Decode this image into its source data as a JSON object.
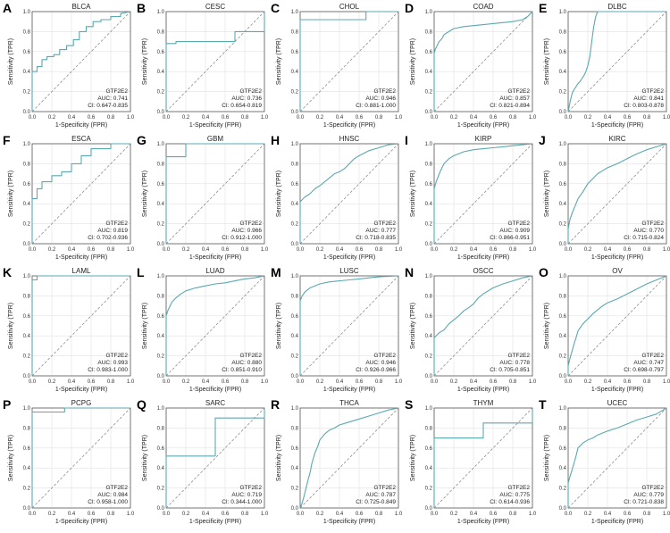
{
  "figure": {
    "xlabel": "1-Specificity (FPR)",
    "ylabel": "Sensitivity (TPR)",
    "ticks": [
      "0.0",
      "0.2",
      "0.4",
      "0.6",
      "0.8",
      "1.0"
    ],
    "curve_color": "#5ba8b0",
    "diagonal_color": "#808080",
    "grid_color": "#e2e2e2"
  },
  "chart_data": [
    {
      "type": "line",
      "panel": "A",
      "title": "BLCA",
      "gene": "GTF2E2",
      "auc": "AUC: 0.741",
      "ci": "CI: 0.647-0.835",
      "xlim": [
        0,
        1
      ],
      "ylim": [
        0,
        1
      ],
      "grid": true,
      "legend": "bottom-right",
      "x": [
        0,
        0,
        0.05,
        0.05,
        0.1,
        0.1,
        0.15,
        0.15,
        0.22,
        0.22,
        0.28,
        0.28,
        0.35,
        0.35,
        0.42,
        0.42,
        0.48,
        0.48,
        0.55,
        0.55,
        0.62,
        0.62,
        0.7,
        0.7,
        0.8,
        0.8,
        0.9,
        0.9,
        1
      ],
      "y": [
        0,
        0.4,
        0.4,
        0.45,
        0.45,
        0.52,
        0.52,
        0.55,
        0.55,
        0.57,
        0.57,
        0.62,
        0.62,
        0.66,
        0.66,
        0.72,
        0.72,
        0.8,
        0.8,
        0.85,
        0.85,
        0.9,
        0.9,
        0.92,
        0.92,
        0.95,
        0.95,
        0.98,
        1
      ]
    },
    {
      "type": "line",
      "panel": "B",
      "title": "CESC",
      "gene": "GTF2E2",
      "auc": "AUC: 0.736",
      "ci": "CI: 0.654-0.819",
      "xlim": [
        0,
        1
      ],
      "ylim": [
        0,
        1
      ],
      "grid": true,
      "legend": "bottom-right",
      "x": [
        0,
        0,
        0.1,
        0.1,
        0.7,
        0.7,
        1,
        1
      ],
      "y": [
        0,
        0.68,
        0.68,
        0.7,
        0.7,
        0.8,
        0.8,
        1
      ]
    },
    {
      "type": "line",
      "panel": "C",
      "title": "CHOL",
      "gene": "GTF2E2",
      "auc": "AUC: 0.946",
      "ci": "CI: 0.881-1.000",
      "xlim": [
        0,
        1
      ],
      "ylim": [
        0,
        1
      ],
      "grid": true,
      "legend": "bottom-right",
      "x": [
        0,
        0,
        0.67,
        0.67,
        1
      ],
      "y": [
        0,
        0.92,
        0.92,
        1,
        1
      ]
    },
    {
      "type": "line",
      "panel": "D",
      "title": "COAD",
      "gene": "GTF2E2",
      "auc": "AUC: 0.857",
      "ci": "CI: 0.821-0.894",
      "xlim": [
        0,
        1
      ],
      "ylim": [
        0,
        1
      ],
      "grid": true,
      "legend": "bottom-right",
      "x": [
        0,
        0,
        0.01,
        0.03,
        0.05,
        0.08,
        0.1,
        0.15,
        0.2,
        0.3,
        0.4,
        0.5,
        0.6,
        0.7,
        0.8,
        0.9,
        0.95,
        1
      ],
      "y": [
        0,
        0.58,
        0.62,
        0.66,
        0.7,
        0.73,
        0.77,
        0.8,
        0.83,
        0.85,
        0.86,
        0.87,
        0.88,
        0.89,
        0.9,
        0.92,
        0.95,
        1
      ]
    },
    {
      "type": "line",
      "panel": "E",
      "title": "DLBC",
      "gene": "GTF2E2",
      "auc": "AUC: 0.841",
      "ci": "CI: 0.803-0.878",
      "xlim": [
        0,
        1
      ],
      "ylim": [
        0,
        1
      ],
      "grid": true,
      "legend": "bottom-right",
      "x": [
        0,
        0.02,
        0.04,
        0.06,
        0.08,
        0.1,
        0.12,
        0.14,
        0.16,
        0.18,
        0.2,
        0.22,
        0.24,
        0.26,
        0.28,
        0.3,
        1
      ],
      "y": [
        0,
        0.1,
        0.18,
        0.22,
        0.25,
        0.28,
        0.3,
        0.33,
        0.36,
        0.4,
        0.46,
        0.55,
        0.7,
        0.85,
        0.95,
        1,
        1
      ]
    },
    {
      "type": "line",
      "panel": "F",
      "title": "ESCA",
      "gene": "GTF2E2",
      "auc": "AUC: 0.819",
      "ci": "CI: 0.702-0.936",
      "xlim": [
        0,
        1
      ],
      "ylim": [
        0,
        1
      ],
      "grid": true,
      "legend": "bottom-right",
      "x": [
        0,
        0,
        0.05,
        0.05,
        0.1,
        0.1,
        0.2,
        0.2,
        0.3,
        0.3,
        0.4,
        0.4,
        0.5,
        0.5,
        0.6,
        0.6,
        0.8,
        0.8,
        1
      ],
      "y": [
        0,
        0.45,
        0.45,
        0.55,
        0.55,
        0.62,
        0.62,
        0.68,
        0.68,
        0.72,
        0.72,
        0.8,
        0.8,
        0.88,
        0.88,
        0.95,
        0.95,
        1,
        1
      ]
    },
    {
      "type": "line",
      "panel": "G",
      "title": "GBM",
      "gene": "GTF2E2",
      "auc": "AUC: 0.966",
      "ci": "CI: 0.912-1.000",
      "xlim": [
        0,
        1
      ],
      "ylim": [
        0,
        1
      ],
      "grid": true,
      "legend": "bottom-right",
      "x": [
        0,
        0,
        0.2,
        0.2,
        1
      ],
      "y": [
        0,
        0.87,
        0.87,
        1,
        1
      ]
    },
    {
      "type": "line",
      "panel": "H",
      "title": "HNSC",
      "gene": "GTF2E2",
      "auc": "AUC: 0.777",
      "ci": "CI: 0.718-0.835",
      "xlim": [
        0,
        1
      ],
      "ylim": [
        0,
        1
      ],
      "grid": true,
      "legend": "bottom-right",
      "x": [
        0,
        0,
        0.05,
        0.1,
        0.15,
        0.2,
        0.25,
        0.3,
        0.35,
        0.4,
        0.45,
        0.5,
        0.55,
        0.6,
        0.7,
        0.8,
        0.9,
        1
      ],
      "y": [
        0,
        0.42,
        0.47,
        0.5,
        0.55,
        0.58,
        0.62,
        0.66,
        0.7,
        0.72,
        0.75,
        0.8,
        0.85,
        0.88,
        0.93,
        0.96,
        0.99,
        1
      ]
    },
    {
      "type": "line",
      "panel": "I",
      "title": "KIRP",
      "gene": "GTF2E2",
      "auc": "AUC: 0.909",
      "ci": "CI: 0.866-0.951",
      "xlim": [
        0,
        1
      ],
      "ylim": [
        0,
        1
      ],
      "grid": true,
      "legend": "bottom-right",
      "x": [
        0,
        0,
        0.02,
        0.04,
        0.06,
        0.1,
        0.15,
        0.2,
        0.25,
        0.3,
        0.4,
        0.5,
        0.6,
        0.7,
        0.8,
        1
      ],
      "y": [
        0,
        0.55,
        0.62,
        0.67,
        0.72,
        0.8,
        0.85,
        0.88,
        0.9,
        0.92,
        0.94,
        0.95,
        0.96,
        0.97,
        0.98,
        1
      ]
    },
    {
      "type": "line",
      "panel": "J",
      "title": "KIRC",
      "gene": "GTF2E2",
      "auc": "AUC: 0.770",
      "ci": "CI: 0.715-0.824",
      "xlim": [
        0,
        1
      ],
      "ylim": [
        0,
        1
      ],
      "grid": true,
      "legend": "bottom-right",
      "x": [
        0,
        0,
        0.02,
        0.05,
        0.08,
        0.1,
        0.15,
        0.2,
        0.25,
        0.3,
        0.35,
        0.4,
        0.5,
        0.6,
        0.7,
        0.8,
        0.9,
        1
      ],
      "y": [
        0,
        0.15,
        0.25,
        0.33,
        0.4,
        0.45,
        0.52,
        0.6,
        0.65,
        0.7,
        0.73,
        0.76,
        0.8,
        0.85,
        0.9,
        0.94,
        0.97,
        1
      ]
    },
    {
      "type": "line",
      "panel": "K",
      "title": "LAML",
      "gene": "GTF2E2",
      "auc": "AUC: 0.993",
      "ci": "CI: 0.983-1.000",
      "xlim": [
        0,
        1
      ],
      "ylim": [
        0,
        1
      ],
      "grid": true,
      "legend": "bottom-right",
      "x": [
        0,
        0,
        0.05,
        0.05,
        1
      ],
      "y": [
        0,
        0.96,
        0.96,
        1,
        1
      ]
    },
    {
      "type": "line",
      "panel": "L",
      "title": "LUAD",
      "gene": "GTF2E2",
      "auc": "AUC: 0.880",
      "ci": "CI: 0.851-0.910",
      "xlim": [
        0,
        1
      ],
      "ylim": [
        0,
        1
      ],
      "grid": true,
      "legend": "bottom-right",
      "x": [
        0,
        0,
        0.02,
        0.04,
        0.06,
        0.1,
        0.15,
        0.2,
        0.3,
        0.4,
        0.5,
        0.6,
        0.7,
        0.8,
        0.9,
        1
      ],
      "y": [
        0,
        0.6,
        0.66,
        0.7,
        0.74,
        0.78,
        0.82,
        0.85,
        0.88,
        0.9,
        0.92,
        0.93,
        0.95,
        0.97,
        0.98,
        1
      ]
    },
    {
      "type": "line",
      "panel": "M",
      "title": "LUSC",
      "gene": "GTF2E2",
      "auc": "AUC: 0.946",
      "ci": "CI: 0.926-0.966",
      "xlim": [
        0,
        1
      ],
      "ylim": [
        0,
        1
      ],
      "grid": true,
      "legend": "bottom-right",
      "x": [
        0,
        0,
        0.02,
        0.05,
        0.1,
        0.15,
        0.2,
        0.3,
        0.4,
        0.5,
        0.6,
        0.7,
        0.8,
        1
      ],
      "y": [
        0,
        0.75,
        0.8,
        0.84,
        0.88,
        0.9,
        0.92,
        0.94,
        0.95,
        0.96,
        0.97,
        0.98,
        0.99,
        1
      ]
    },
    {
      "type": "line",
      "panel": "N",
      "title": "OSCC",
      "gene": "GTF2E2",
      "auc": "AUC: 0.778",
      "ci": "CI: 0.705-0.851",
      "xlim": [
        0,
        1
      ],
      "ylim": [
        0,
        1
      ],
      "grid": true,
      "legend": "bottom-right",
      "x": [
        0,
        0,
        0.05,
        0.1,
        0.15,
        0.2,
        0.25,
        0.3,
        0.35,
        0.4,
        0.45,
        0.5,
        0.6,
        0.7,
        0.8,
        0.9,
        1
      ],
      "y": [
        0,
        0.38,
        0.43,
        0.46,
        0.52,
        0.56,
        0.6,
        0.65,
        0.68,
        0.72,
        0.78,
        0.82,
        0.88,
        0.92,
        0.95,
        0.98,
        1
      ]
    },
    {
      "type": "line",
      "panel": "O",
      "title": "OV",
      "gene": "GTF2E2",
      "auc": "AUC: 0.747",
      "ci": "CI: 0.698-0.797",
      "xlim": [
        0,
        1
      ],
      "ylim": [
        0,
        1
      ],
      "grid": true,
      "legend": "bottom-right",
      "x": [
        0,
        0,
        0.02,
        0.04,
        0.06,
        0.08,
        0.1,
        0.15,
        0.2,
        0.25,
        0.3,
        0.35,
        0.4,
        0.5,
        0.6,
        0.7,
        0.8,
        0.9,
        1
      ],
      "y": [
        0,
        0.1,
        0.18,
        0.25,
        0.32,
        0.38,
        0.45,
        0.52,
        0.57,
        0.62,
        0.66,
        0.7,
        0.73,
        0.77,
        0.82,
        0.87,
        0.92,
        0.96,
        1
      ]
    },
    {
      "type": "line",
      "panel": "P",
      "title": "PCPG",
      "gene": "GTF2E2",
      "auc": "AUC: 0.984",
      "ci": "CI: 0.958-1.000",
      "xlim": [
        0,
        1
      ],
      "ylim": [
        0,
        1
      ],
      "grid": true,
      "legend": "bottom-right",
      "x": [
        0,
        0,
        0.33,
        0.33,
        1
      ],
      "y": [
        0,
        0.96,
        0.96,
        1,
        1
      ]
    },
    {
      "type": "line",
      "panel": "Q",
      "title": "SARC",
      "gene": "GTF2E2",
      "auc": "AUC: 0.719",
      "ci": "CI: 0.344-1.000",
      "xlim": [
        0,
        1
      ],
      "ylim": [
        0,
        1
      ],
      "grid": true,
      "legend": "bottom-right",
      "x": [
        0,
        0,
        0.5,
        0.5,
        1,
        1
      ],
      "y": [
        0,
        0.52,
        0.52,
        0.9,
        0.9,
        1
      ]
    },
    {
      "type": "line",
      "panel": "R",
      "title": "THCA",
      "gene": "GTF2E2",
      "auc": "AUC: 0.787",
      "ci": "CI: 0.725-0.849",
      "xlim": [
        0,
        1
      ],
      "ylim": [
        0,
        1
      ],
      "grid": true,
      "legend": "bottom-right",
      "x": [
        0,
        0.02,
        0.04,
        0.06,
        0.08,
        0.1,
        0.12,
        0.15,
        0.18,
        0.2,
        0.25,
        0.3,
        0.35,
        0.4,
        0.5,
        0.6,
        0.7,
        0.8,
        0.9,
        1
      ],
      "y": [
        0,
        0.05,
        0.12,
        0.2,
        0.28,
        0.35,
        0.45,
        0.55,
        0.62,
        0.68,
        0.74,
        0.78,
        0.8,
        0.83,
        0.86,
        0.89,
        0.92,
        0.95,
        0.98,
        1
      ]
    },
    {
      "type": "line",
      "panel": "S",
      "title": "THYM",
      "gene": "GTF2E2",
      "auc": "AUC: 0.775",
      "ci": "CI: 0.614-0.936",
      "xlim": [
        0,
        1
      ],
      "ylim": [
        0,
        1
      ],
      "grid": true,
      "legend": "bottom-right",
      "x": [
        0,
        0,
        0.5,
        0.5,
        1,
        1
      ],
      "y": [
        0,
        0.7,
        0.7,
        0.85,
        0.85,
        1
      ]
    },
    {
      "type": "line",
      "panel": "T",
      "title": "UCEC",
      "gene": "GTF2E2",
      "auc": "AUC: 0.779",
      "ci": "CI: 0.721-0.838",
      "xlim": [
        0,
        1
      ],
      "ylim": [
        0,
        1
      ],
      "grid": true,
      "legend": "bottom-right",
      "x": [
        0,
        0,
        0.02,
        0.04,
        0.06,
        0.08,
        0.1,
        0.15,
        0.2,
        0.25,
        0.3,
        0.4,
        0.5,
        0.6,
        0.7,
        0.8,
        0.9,
        1
      ],
      "y": [
        0,
        0.25,
        0.32,
        0.38,
        0.45,
        0.52,
        0.6,
        0.65,
        0.68,
        0.7,
        0.73,
        0.77,
        0.8,
        0.84,
        0.88,
        0.91,
        0.94,
        1
      ]
    }
  ]
}
